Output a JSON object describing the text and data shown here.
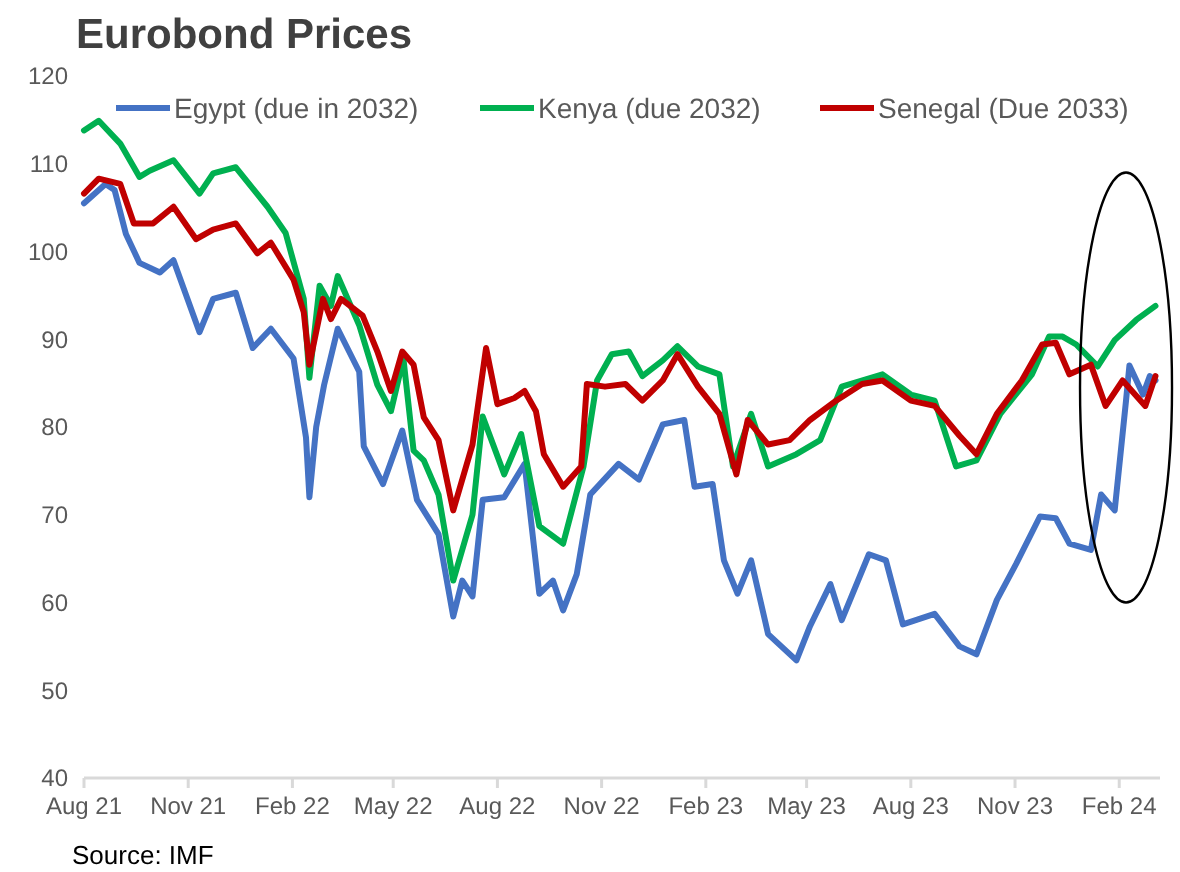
{
  "chart_data": {
    "type": "line",
    "title": "Eurobond Prices",
    "annotations": [
      "Source: IMF"
    ],
    "xlim": [
      "2021-08-01",
      "2024-03-08"
    ],
    "xticks": [
      {
        "value": "2021-08-01",
        "label": "Aug 21"
      },
      {
        "value": "2021-11-01",
        "label": "Nov 21"
      },
      {
        "value": "2022-02-01",
        "label": "Feb 22"
      },
      {
        "value": "2022-05-01",
        "label": "May 22"
      },
      {
        "value": "2022-08-01",
        "label": "Aug 22"
      },
      {
        "value": "2022-11-01",
        "label": "Nov 22"
      },
      {
        "value": "2023-02-01",
        "label": "Feb 23"
      },
      {
        "value": "2023-05-01",
        "label": "May 23"
      },
      {
        "value": "2023-08-01",
        "label": "Aug 23"
      },
      {
        "value": "2023-11-01",
        "label": "Nov 23"
      },
      {
        "value": "2024-02-01",
        "label": "Feb 24"
      }
    ],
    "ylim": [
      40,
      120
    ],
    "yticks": [
      40,
      50,
      60,
      70,
      80,
      90,
      100,
      110,
      120
    ],
    "grid": false,
    "legend": "top",
    "marker": "none",
    "line_style": "solid",
    "series": [
      {
        "name": "Egypt (due in 2032)",
        "color": "#4472c4",
        "x": [
          "2021-08-01",
          "2021-08-20",
          "2021-08-28",
          "2021-09-07",
          "2021-09-19",
          "2021-10-07",
          "2021-10-19",
          "2021-11-11",
          "2021-11-23",
          "2021-12-13",
          "2021-12-28",
          "2022-01-13",
          "2022-02-02",
          "2022-02-13",
          "2022-02-16",
          "2022-02-22",
          "2022-03-01",
          "2022-03-13",
          "2022-04-01",
          "2022-04-05",
          "2022-04-22",
          "2022-05-09",
          "2022-05-22",
          "2022-06-10",
          "2022-06-23",
          "2022-07-01",
          "2022-07-10",
          "2022-07-19",
          "2022-08-07",
          "2022-08-25",
          "2022-09-07",
          "2022-09-19",
          "2022-09-28",
          "2022-10-10",
          "2022-10-22",
          "2022-11-16",
          "2022-12-04",
          "2022-12-25",
          "2023-01-13",
          "2023-01-22",
          "2023-02-07",
          "2023-02-17",
          "2023-03-01",
          "2023-03-13",
          "2023-03-28",
          "2023-04-22",
          "2023-05-04",
          "2023-05-22",
          "2023-06-01",
          "2023-06-25",
          "2023-07-10",
          "2023-07-25",
          "2023-08-22",
          "2023-09-13",
          "2023-09-28",
          "2023-10-16",
          "2023-11-02",
          "2023-11-23",
          "2023-12-07",
          "2023-12-19",
          "2024-01-07",
          "2024-01-16",
          "2024-01-28",
          "2024-02-07",
          "2024-02-10",
          "2024-02-22",
          "2024-02-28",
          "2024-03-04"
        ],
        "values": [
          105.5,
          107.7,
          107,
          102,
          98.7,
          97.6,
          99,
          90.8,
          94.6,
          95.3,
          89,
          91.2,
          87.8,
          78.8,
          72,
          80,
          84.8,
          91.2,
          86.3,
          77.8,
          73.5,
          79.6,
          71.7,
          67.8,
          58.4,
          62.5,
          60.7,
          71.7,
          72,
          75.8,
          61,
          62.5,
          59.1,
          63.2,
          72.3,
          75.8,
          74,
          80.3,
          80.8,
          73.2,
          73.5,
          64.8,
          61,
          64.8,
          56.4,
          53.4,
          57.3,
          62.1,
          58,
          65.5,
          64.8,
          57.5,
          58.7,
          55,
          54.1,
          60.3,
          64.4,
          69.8,
          69.6,
          66.7,
          66,
          72.3,
          70.5,
          83,
          87,
          83.7,
          85.8,
          85.3
        ]
      },
      {
        "name": "Kenya (due 2032)",
        "color": "#00b050",
        "x": [
          "2021-08-01",
          "2021-08-14",
          "2021-09-02",
          "2021-09-19",
          "2021-09-28",
          "2021-10-19",
          "2021-11-11",
          "2021-11-23",
          "2021-12-13",
          "2022-01-10",
          "2022-01-26",
          "2022-02-11",
          "2022-02-16",
          "2022-02-25",
          "2022-03-07",
          "2022-03-13",
          "2022-04-01",
          "2022-04-17",
          "2022-04-29",
          "2022-05-10",
          "2022-05-19",
          "2022-05-28",
          "2022-06-10",
          "2022-06-23",
          "2022-07-10",
          "2022-07-19",
          "2022-08-07",
          "2022-08-22",
          "2022-09-07",
          "2022-09-28",
          "2022-10-16",
          "2022-10-28",
          "2022-11-10",
          "2022-11-25",
          "2022-12-07",
          "2022-12-25",
          "2023-01-07",
          "2023-01-25",
          "2023-02-13",
          "2023-02-25",
          "2023-03-13",
          "2023-03-28",
          "2023-04-22",
          "2023-05-13",
          "2023-06-01",
          "2023-07-07",
          "2023-08-01",
          "2023-08-22",
          "2023-09-10",
          "2023-09-28",
          "2023-10-19",
          "2023-11-16",
          "2023-12-01",
          "2023-12-13",
          "2023-12-25",
          "2024-01-13",
          "2024-01-28",
          "2024-02-16",
          "2024-03-04"
        ],
        "values": [
          113.8,
          114.9,
          112.3,
          108.5,
          109.2,
          110.4,
          106.6,
          108.9,
          109.6,
          105.1,
          102.1,
          94.6,
          85.6,
          96.1,
          93.8,
          97.2,
          91.6,
          84.8,
          81.8,
          87.8,
          77.3,
          76.2,
          72.3,
          62.5,
          70,
          81.2,
          74.6,
          79.2,
          68.7,
          66.7,
          75.5,
          85.3,
          88.3,
          88.6,
          85.8,
          87.6,
          89.2,
          86.9,
          86,
          75.5,
          81.5,
          75.5,
          76.9,
          78.5,
          84.6,
          86,
          83.7,
          83,
          75.5,
          76.2,
          81.5,
          86,
          90.3,
          90.3,
          89.4,
          86.9,
          89.9,
          92.2,
          93.8
        ]
      },
      {
        "name": "Senegal (Due 2033)",
        "color": "#c00000",
        "x": [
          "2021-08-01",
          "2021-08-14",
          "2021-09-02",
          "2021-09-14",
          "2021-10-01",
          "2021-10-19",
          "2021-11-08",
          "2021-11-23",
          "2021-12-13",
          "2022-01-01",
          "2022-01-13",
          "2022-02-02",
          "2022-02-11",
          "2022-02-16",
          "2022-02-28",
          "2022-03-07",
          "2022-03-16",
          "2022-04-04",
          "2022-04-17",
          "2022-04-29",
          "2022-05-09",
          "2022-05-19",
          "2022-05-28",
          "2022-06-10",
          "2022-06-23",
          "2022-07-10",
          "2022-07-22",
          "2022-08-01",
          "2022-08-16",
          "2022-08-25",
          "2022-09-04",
          "2022-09-11",
          "2022-09-28",
          "2022-10-14",
          "2022-10-19",
          "2022-11-04",
          "2022-11-22",
          "2022-12-07",
          "2022-12-25",
          "2023-01-07",
          "2023-01-25",
          "2023-02-13",
          "2023-02-28",
          "2023-03-10",
          "2023-03-28",
          "2023-04-16",
          "2023-05-04",
          "2023-05-27",
          "2023-06-19",
          "2023-07-07",
          "2023-08-01",
          "2023-08-22",
          "2023-09-13",
          "2023-09-28",
          "2023-10-16",
          "2023-11-07",
          "2023-11-25",
          "2023-12-07",
          "2023-12-19",
          "2024-01-07",
          "2024-01-20",
          "2024-02-04",
          "2024-02-24",
          "2024-03-04"
        ],
        "values": [
          106.6,
          108.3,
          107.7,
          103.2,
          103.2,
          105.1,
          101.4,
          102.5,
          103.2,
          99.8,
          101,
          96.8,
          93.1,
          87.1,
          94.6,
          92.3,
          94.6,
          92.7,
          88.6,
          84.1,
          88.6,
          87.1,
          81.1,
          78.5,
          70.5,
          78,
          89,
          82.6,
          83.3,
          84.1,
          81.8,
          76.9,
          73.2,
          75.5,
          84.9,
          84.6,
          84.9,
          83,
          85.3,
          88.3,
          84.6,
          81.5,
          74.6,
          80.8,
          78,
          78.5,
          80.8,
          83,
          84.9,
          85.3,
          83,
          82.4,
          79,
          76.9,
          81.5,
          85.3,
          89.4,
          89.6,
          86,
          87.1,
          82.4,
          85.3,
          82.4,
          85.8
        ]
      }
    ]
  }
}
